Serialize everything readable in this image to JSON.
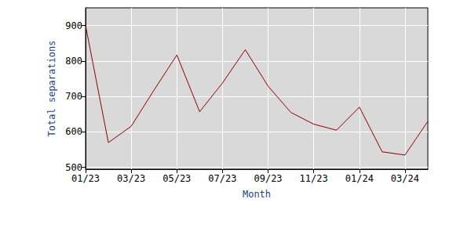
{
  "chart_data": {
    "type": "line",
    "x_label": "Month",
    "y_label": "Total separations",
    "categories": [
      "01/23",
      null,
      "03/23",
      null,
      "05/23",
      null,
      "07/23",
      null,
      "09/23",
      null,
      "11/23",
      null,
      "01/24",
      null,
      "03/24",
      null
    ],
    "values": [
      900,
      570,
      616,
      718,
      817,
      657,
      738,
      832,
      729,
      655,
      622,
      605,
      670,
      544,
      535,
      630
    ],
    "color": "#8b0000",
    "ylim": [
      495,
      950
    ],
    "yticks": [
      500,
      600,
      700,
      800,
      900
    ],
    "grid": true
  }
}
